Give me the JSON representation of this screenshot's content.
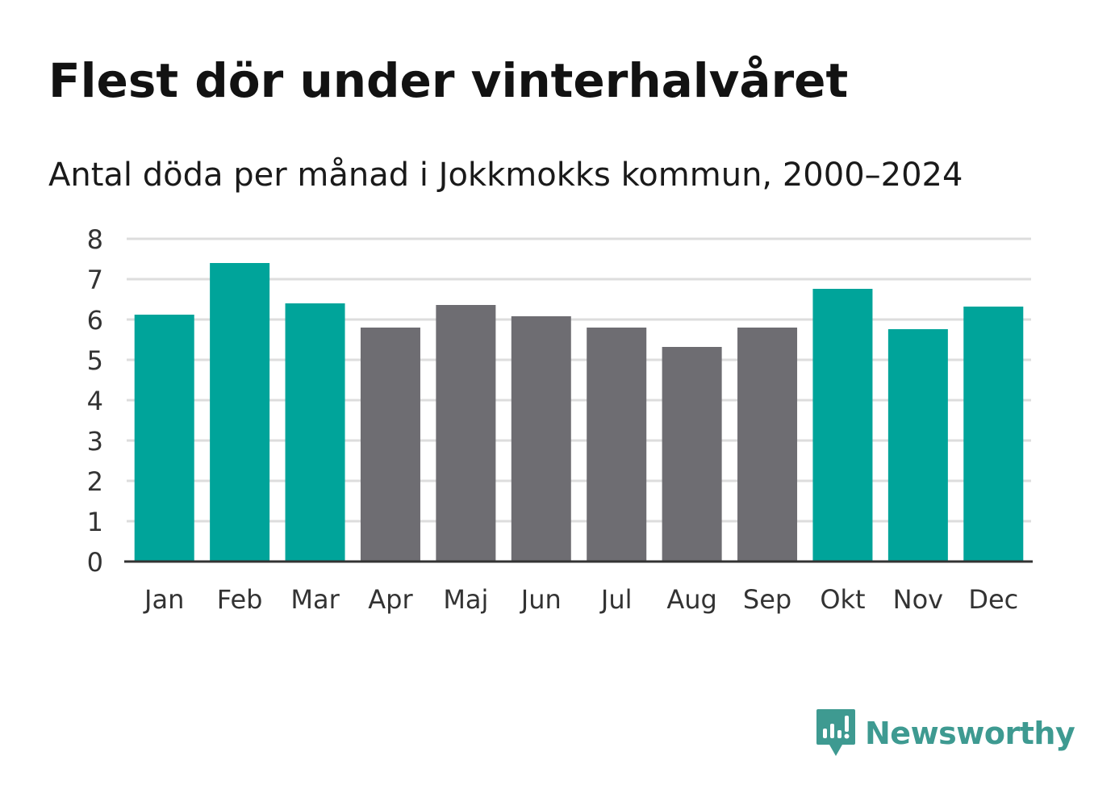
{
  "title": "Flest dör under vinterhalvåret",
  "subtitle": "Antal döda per månad i Jokkmokks kommun, 2000–2024",
  "brand": {
    "name": "Newsworthy",
    "icon": "newsworthy-logo-icon",
    "color": "#3e9a91"
  },
  "colors": {
    "highlight": "#00a49a",
    "neutral": "#6e6d72",
    "gridline": "#dddddd",
    "axis": "#333333"
  },
  "chart_data": {
    "type": "bar",
    "title": "Flest dör under vinterhalvåret",
    "subtitle": "Antal döda per månad i Jokkmokks kommun, 2000–2024",
    "xlabel": "",
    "ylabel": "",
    "ylim": [
      0,
      8
    ],
    "yticks": [
      0,
      1,
      2,
      3,
      4,
      5,
      6,
      7,
      8
    ],
    "grid": true,
    "legend": "none",
    "categories": [
      "Jan",
      "Feb",
      "Mar",
      "Apr",
      "Maj",
      "Jun",
      "Jul",
      "Aug",
      "Sep",
      "Okt",
      "Nov",
      "Dec"
    ],
    "values": [
      6.12,
      7.4,
      6.4,
      5.8,
      6.36,
      6.08,
      5.8,
      5.32,
      5.8,
      6.76,
      5.76,
      6.32
    ],
    "highlighted": [
      true,
      true,
      true,
      false,
      false,
      false,
      false,
      false,
      false,
      true,
      true,
      true
    ]
  }
}
